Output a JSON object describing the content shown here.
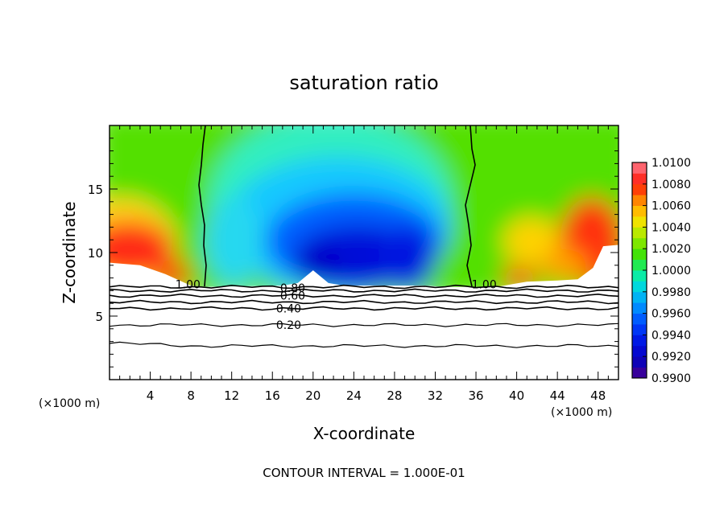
{
  "chart_data": {
    "type": "heatmap",
    "title": "saturation ratio",
    "xlabel": "X-coordinate",
    "ylabel": "Z-coordinate",
    "x_unit_label": "(×1000 m)",
    "y_unit_label": "(×1000 m)",
    "xlim": [
      0,
      50
    ],
    "ylim": [
      0,
      20
    ],
    "x_ticks": [
      4,
      8,
      12,
      16,
      20,
      24,
      28,
      32,
      36,
      40,
      44,
      48
    ],
    "x_tick_labels": [
      "4",
      "8",
      "12",
      "16",
      "20",
      "24",
      "28",
      "32",
      "36",
      "40",
      "44",
      "48"
    ],
    "y_ticks": [
      5,
      10,
      15
    ],
    "y_tick_labels": [
      "5",
      "10",
      "15"
    ],
    "footer": "CONTOUR INTERVAL = 1.000E-01",
    "colorbar": {
      "min": 0.99,
      "max": 1.01,
      "step": 0.001,
      "tick_labels": [
        "1.0100",
        "1.0080",
        "1.0060",
        "1.0040",
        "1.0020",
        "1.0000",
        "0.9980",
        "0.9960",
        "0.9940",
        "0.9920",
        "0.9900"
      ]
    },
    "contour_labels": [
      {
        "text": "1.00",
        "x": 7.7,
        "z": 7.5
      },
      {
        "text": "1.00",
        "x": 36.8,
        "z": 7.5
      },
      {
        "text": "0.80",
        "x": 18.0,
        "z": 7.2
      },
      {
        "text": "0.60",
        "x": 18.0,
        "z": 6.6
      },
      {
        "text": "0.40",
        "x": 17.6,
        "z": 5.6
      },
      {
        "text": "0.20",
        "x": 17.6,
        "z": 4.3
      }
    ],
    "cloud_base_z": [
      [
        0,
        9.2
      ],
      [
        3,
        9.0
      ],
      [
        5.5,
        8.3
      ],
      [
        8.0,
        7.4
      ],
      [
        9.5,
        7.3
      ],
      [
        17,
        7.4
      ],
      [
        18.5,
        7.6
      ],
      [
        20,
        8.6
      ],
      [
        21.5,
        7.6
      ],
      [
        23,
        7.4
      ],
      [
        31,
        7.4
      ],
      [
        33,
        7.3
      ],
      [
        38,
        7.3
      ],
      [
        41,
        7.7
      ],
      [
        44,
        7.8
      ],
      [
        46,
        7.9
      ],
      [
        47.5,
        8.8
      ],
      [
        48.5,
        10.5
      ],
      [
        50,
        10.6
      ]
    ],
    "isolines_z": [
      7.3,
      7.0,
      6.6,
      6.1,
      5.6,
      4.3,
      2.9
    ]
  }
}
